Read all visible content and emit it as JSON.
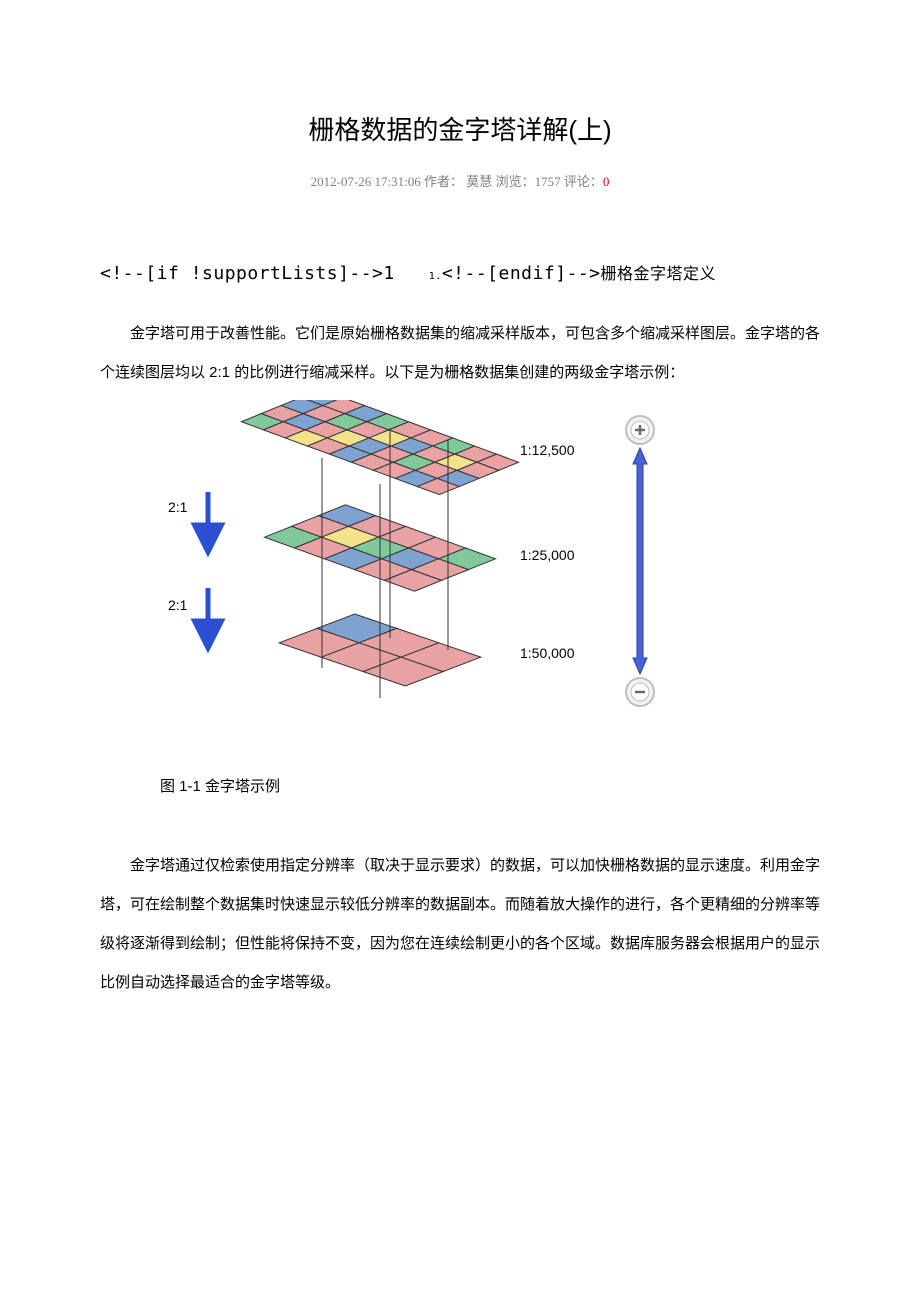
{
  "title": "栅格数据的金字塔详解(上)",
  "meta": {
    "datetime": "2012-07-26 17:31:06",
    "author_label": "作者：",
    "author": " 莫慧",
    "views_label": " 浏览：",
    "views": "1757",
    "comments_label": " 评论：",
    "comments": "0"
  },
  "section": {
    "prefix": "<!--[if !supportLists]-->1",
    "num_sub": "1.",
    "suffix": "<!--[endif]-->",
    "heading_cn": "栅格金字塔定义"
  },
  "para1": "金字塔可用于改善性能。它们是原始栅格数据集的缩减采样版本，可包含多个缩减采样图层。金字塔的各个连续图层均以 2:1 的比例进行缩减采样。以下是为栅格数据集创建的两级金字塔示例：",
  "figure": {
    "type": "diagram",
    "caption": "图 1-1 金字塔示例",
    "labels": {
      "scale_top": "1:12,500",
      "scale_mid": "1:25,000",
      "scale_bot": "1:50,000",
      "ratio": "2:1"
    },
    "colors": {
      "pink": "#e8a2a4",
      "blue": "#7fa3d1",
      "green": "#7fc99a",
      "yellow": "#f2e28a",
      "grid_stroke": "#333333",
      "arrow_blue": "#2a4fd3",
      "zoom_arrow": "#4a63d4",
      "zoom_arrow_dark": "#2a3fa8",
      "icon_ring": "#bfbfbf",
      "icon_ring_inner": "#f2f2f2",
      "icon_glyph": "#6a6a6a",
      "text": "#000000"
    },
    "layers": [
      {
        "scale": "1:12,500",
        "rows": 4,
        "cols": 9
      },
      {
        "scale": "1:25,000",
        "rows": 3,
        "cols": 5
      },
      {
        "scale": "1:50,000",
        "rows": 2,
        "cols": 3
      }
    ],
    "ratio_steps": [
      "2:1",
      "2:1"
    ],
    "top_grid_fill": [
      [
        "blue",
        "pink",
        "blue",
        "green",
        "pink",
        "pink",
        "green",
        "pink",
        "pink"
      ],
      [
        "blue",
        "pink",
        "green",
        "pink",
        "yellow",
        "blue",
        "pink",
        "yellow",
        "pink"
      ],
      [
        "pink",
        "blue",
        "pink",
        "yellow",
        "blue",
        "pink",
        "green",
        "pink",
        "blue"
      ],
      [
        "green",
        "pink",
        "yellow",
        "pink",
        "blue",
        "pink",
        "pink",
        "blue",
        "pink"
      ]
    ],
    "mid_grid_fill": [
      [
        "blue",
        "pink",
        "pink",
        "pink",
        "green"
      ],
      [
        "pink",
        "yellow",
        "green",
        "blue",
        "pink"
      ],
      [
        "green",
        "pink",
        "blue",
        "pink",
        "pink"
      ]
    ],
    "bot_grid_fill": [
      [
        "blue",
        "pink",
        "pink"
      ],
      [
        "pink",
        "pink",
        "pink"
      ]
    ]
  },
  "para2": "金字塔通过仅检索使用指定分辨率（取决于显示要求）的数据，可以加快栅格数据的显示速度。利用金字塔，可在绘制整个数据集时快速显示较低分辨率的数据副本。而随着放大操作的进行，各个更精细的分辨率等级将逐渐得到绘制；但性能将保持不变，因为您在连续绘制更小的各个区域。数据库服务器会根据用户的显示比例自动选择最适合的金字塔等级。"
}
